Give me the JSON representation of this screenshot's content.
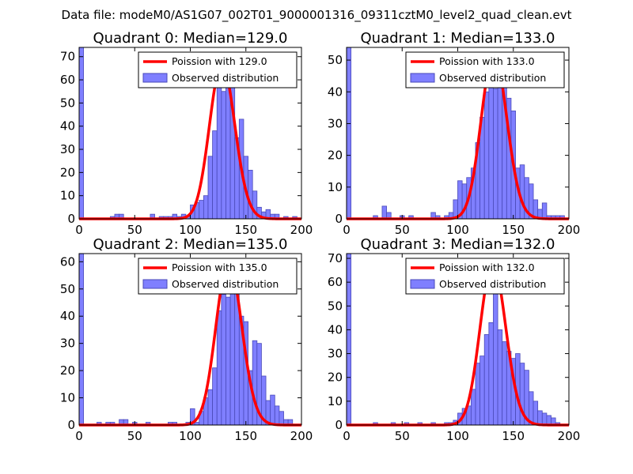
{
  "figure_title": "Data file: modeM0/AS1G07_002T01_9000001316_09311cztM0_level2_quad_clean.evt",
  "colors": {
    "bar_fill": "#7f7fff",
    "bar_edge": "#4a4ab8",
    "curve": "#ff0000",
    "frame": "#000000"
  },
  "chart_data": [
    {
      "type": "bar",
      "title": "Quadrant 0: Median=129.0",
      "xlim": [
        0,
        200
      ],
      "ylim": [
        0,
        74
      ],
      "xticks": [
        0,
        50,
        100,
        150,
        200
      ],
      "yticks": [
        0,
        10,
        20,
        30,
        40,
        50,
        60,
        70
      ],
      "bin_width": 4,
      "bins": [
        [
          0,
          74
        ],
        [
          28,
          1
        ],
        [
          32,
          2
        ],
        [
          36,
          2
        ],
        [
          64,
          2
        ],
        [
          72,
          1
        ],
        [
          76,
          1
        ],
        [
          80,
          1
        ],
        [
          84,
          2
        ],
        [
          88,
          1
        ],
        [
          92,
          2
        ],
        [
          96,
          1
        ],
        [
          100,
          6
        ],
        [
          104,
          7
        ],
        [
          108,
          8
        ],
        [
          112,
          10
        ],
        [
          116,
          27
        ],
        [
          120,
          38
        ],
        [
          124,
          67
        ],
        [
          128,
          55
        ],
        [
          132,
          60
        ],
        [
          136,
          60
        ],
        [
          140,
          35
        ],
        [
          144,
          43
        ],
        [
          148,
          27
        ],
        [
          152,
          21
        ],
        [
          156,
          12
        ],
        [
          160,
          5
        ],
        [
          164,
          3
        ],
        [
          168,
          4
        ],
        [
          172,
          2
        ],
        [
          176,
          2
        ],
        [
          184,
          1
        ],
        [
          192,
          1
        ]
      ],
      "series": [
        {
          "name": "Poission with 129.0",
          "kind": "line",
          "mean": 129.0
        },
        {
          "name": "Observed distribution",
          "kind": "histogram"
        }
      ]
    },
    {
      "type": "bar",
      "title": "Quadrant 1: Median=133.0",
      "xlim": [
        0,
        200
      ],
      "ylim": [
        0,
        54
      ],
      "xticks": [
        0,
        50,
        100,
        150,
        200
      ],
      "yticks": [
        0,
        10,
        20,
        30,
        40,
        50
      ],
      "bin_width": 4,
      "bins": [
        [
          0,
          54
        ],
        [
          24,
          1
        ],
        [
          32,
          4
        ],
        [
          36,
          2
        ],
        [
          48,
          1
        ],
        [
          56,
          1
        ],
        [
          76,
          2
        ],
        [
          80,
          1
        ],
        [
          88,
          1
        ],
        [
          92,
          2
        ],
        [
          96,
          6
        ],
        [
          100,
          12
        ],
        [
          104,
          11
        ],
        [
          108,
          13
        ],
        [
          112,
          16
        ],
        [
          116,
          24
        ],
        [
          120,
          32
        ],
        [
          124,
          40
        ],
        [
          128,
          48
        ],
        [
          132,
          41
        ],
        [
          136,
          52
        ],
        [
          140,
          48
        ],
        [
          144,
          38
        ],
        [
          148,
          34
        ],
        [
          152,
          16
        ],
        [
          156,
          17
        ],
        [
          160,
          13
        ],
        [
          164,
          11
        ],
        [
          168,
          6
        ],
        [
          172,
          3
        ],
        [
          176,
          5
        ],
        [
          180,
          1
        ],
        [
          184,
          1
        ],
        [
          188,
          1
        ],
        [
          192,
          1
        ]
      ],
      "series": [
        {
          "name": "Poission with 133.0",
          "kind": "line",
          "mean": 133.0
        },
        {
          "name": "Observed distribution",
          "kind": "histogram"
        }
      ]
    },
    {
      "type": "bar",
      "title": "Quadrant 2: Median=135.0",
      "xlim": [
        0,
        200
      ],
      "ylim": [
        0,
        63
      ],
      "xticks": [
        0,
        50,
        100,
        150,
        200
      ],
      "yticks": [
        0,
        10,
        20,
        30,
        40,
        50,
        60
      ],
      "bin_width": 4,
      "bins": [
        [
          0,
          63
        ],
        [
          16,
          1
        ],
        [
          24,
          1
        ],
        [
          28,
          1
        ],
        [
          36,
          2
        ],
        [
          40,
          2
        ],
        [
          48,
          1
        ],
        [
          60,
          1
        ],
        [
          80,
          1
        ],
        [
          84,
          1
        ],
        [
          96,
          1
        ],
        [
          100,
          6
        ],
        [
          104,
          1
        ],
        [
          108,
          5
        ],
        [
          112,
          10
        ],
        [
          116,
          13
        ],
        [
          120,
          21
        ],
        [
          124,
          42
        ],
        [
          128,
          48
        ],
        [
          132,
          47
        ],
        [
          136,
          60
        ],
        [
          140,
          50
        ],
        [
          144,
          40
        ],
        [
          148,
          38
        ],
        [
          152,
          20
        ],
        [
          156,
          31
        ],
        [
          160,
          30
        ],
        [
          164,
          18
        ],
        [
          168,
          9
        ],
        [
          172,
          11
        ],
        [
          176,
          7
        ],
        [
          180,
          5
        ],
        [
          184,
          2
        ],
        [
          188,
          2
        ]
      ],
      "series": [
        {
          "name": "Poission with 135.0",
          "kind": "line",
          "mean": 135.0
        },
        {
          "name": "Observed distribution",
          "kind": "histogram"
        }
      ]
    },
    {
      "type": "bar",
      "title": "Quadrant 3: Median=132.0",
      "xlim": [
        0,
        200
      ],
      "ylim": [
        0,
        72
      ],
      "xticks": [
        0,
        50,
        100,
        150,
        200
      ],
      "yticks": [
        0,
        10,
        20,
        30,
        40,
        50,
        60,
        70
      ],
      "bin_width": 4,
      "bins": [
        [
          0,
          72
        ],
        [
          24,
          1
        ],
        [
          40,
          1
        ],
        [
          52,
          1
        ],
        [
          64,
          1
        ],
        [
          76,
          1
        ],
        [
          88,
          1
        ],
        [
          92,
          1
        ],
        [
          96,
          2
        ],
        [
          100,
          5
        ],
        [
          104,
          7
        ],
        [
          108,
          8
        ],
        [
          112,
          15
        ],
        [
          116,
          26
        ],
        [
          120,
          29
        ],
        [
          124,
          38
        ],
        [
          128,
          43
        ],
        [
          132,
          68
        ],
        [
          136,
          40
        ],
        [
          140,
          35
        ],
        [
          144,
          31
        ],
        [
          148,
          28
        ],
        [
          152,
          30
        ],
        [
          156,
          26
        ],
        [
          160,
          23
        ],
        [
          164,
          14
        ],
        [
          168,
          10
        ],
        [
          172,
          6
        ],
        [
          176,
          5
        ],
        [
          180,
          4
        ],
        [
          184,
          3
        ],
        [
          188,
          1
        ]
      ],
      "series": [
        {
          "name": "Poission with 132.0",
          "kind": "line",
          "mean": 132.0
        },
        {
          "name": "Observed distribution",
          "kind": "histogram"
        }
      ]
    }
  ]
}
